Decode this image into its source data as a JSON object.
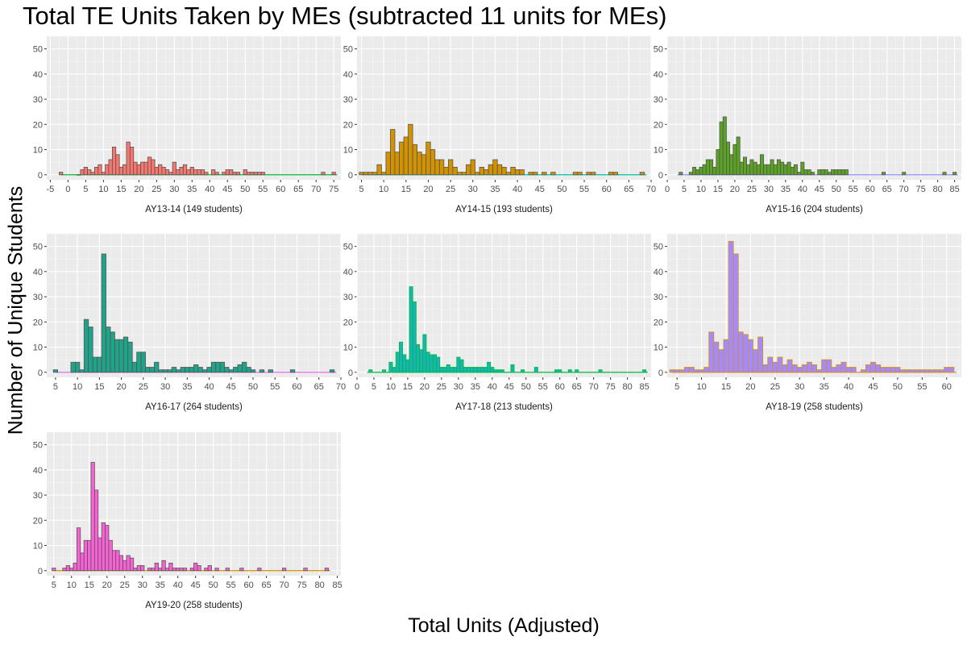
{
  "title": "Total TE Units Taken by MEs (subtracted 11 units for MEs)",
  "ylabel": "Number of Unique Students",
  "xlabel": "Total Units (Adjusted)",
  "chart_data": [
    {
      "type": "bar",
      "panel": "AY13-14 (149 students)",
      "fill": "#F8766D",
      "stroke": "#555555",
      "xlim": [
        -6,
        77
      ],
      "xticks": [
        -5,
        0,
        5,
        10,
        15,
        20,
        25,
        30,
        35,
        40,
        45,
        50,
        55,
        60,
        65,
        70,
        75
      ],
      "ylim": [
        -2,
        55
      ],
      "yticks": [
        0,
        10,
        20,
        30,
        40,
        50
      ],
      "line_color": "#00BA38",
      "line_range": [
        -2,
        76
      ],
      "x": [
        -2,
        3,
        4,
        5,
        6,
        7,
        8,
        9,
        10,
        11,
        12,
        13,
        14,
        15,
        16,
        17,
        18,
        19,
        20,
        21,
        22,
        23,
        24,
        25,
        26,
        27,
        28,
        29,
        30,
        31,
        32,
        33,
        34,
        35,
        36,
        37,
        38,
        39,
        41,
        42,
        44,
        45,
        46,
        47,
        48,
        50,
        51,
        52,
        53,
        54,
        55,
        72,
        75
      ],
      "values": [
        1,
        0,
        2,
        3,
        2,
        1,
        3,
        4,
        1,
        4,
        6,
        11,
        8,
        3,
        4,
        13,
        11,
        5,
        4,
        5,
        5,
        7,
        6,
        3,
        4,
        3,
        2,
        1,
        5,
        2,
        3,
        4,
        2,
        3,
        2,
        2,
        2,
        1,
        2,
        1,
        1,
        2,
        2,
        1,
        1,
        2,
        1,
        1,
        1,
        1,
        1,
        1,
        1
      ]
    },
    {
      "type": "bar",
      "panel": "AY14-15 (193 students)",
      "fill": "#D39200",
      "stroke": "#555555",
      "xlim": [
        4,
        70
      ],
      "xticks": [
        5,
        10,
        15,
        20,
        25,
        30,
        35,
        40,
        45,
        50,
        55,
        60,
        65,
        70
      ],
      "ylim": [
        -2,
        55
      ],
      "yticks": [
        0,
        10,
        20,
        30,
        40,
        50
      ],
      "line_color": "#00C19F",
      "line_range": [
        5,
        69
      ],
      "x": [
        5,
        6,
        7,
        8,
        9,
        10,
        11,
        12,
        13,
        14,
        15,
        16,
        17,
        18,
        19,
        20,
        21,
        22,
        23,
        24,
        25,
        26,
        27,
        28,
        29,
        30,
        31,
        32,
        33,
        34,
        35,
        36,
        37,
        38,
        39,
        40,
        41,
        43,
        44,
        46,
        48,
        53,
        54,
        56,
        57,
        61,
        62,
        68
      ],
      "values": [
        1,
        1,
        1,
        1,
        4,
        1,
        9,
        18,
        9,
        13,
        15,
        20,
        12,
        9,
        8,
        13,
        10,
        6,
        6,
        3,
        6,
        3,
        1,
        1,
        4,
        6,
        1,
        3,
        2,
        4,
        6,
        4,
        3,
        1,
        3,
        2,
        2,
        1,
        1,
        1,
        1,
        1,
        1,
        1,
        1,
        1,
        1,
        1
      ]
    },
    {
      "type": "bar",
      "panel": "AY15-16 (204 students)",
      "fill": "#5BA322",
      "stroke": "#555555",
      "xlim": [
        0,
        87
      ],
      "xticks": [
        0,
        5,
        10,
        15,
        20,
        25,
        30,
        35,
        40,
        45,
        50,
        55,
        60,
        65,
        70,
        75,
        80,
        85
      ],
      "ylim": [
        -2,
        55
      ],
      "yticks": [
        0,
        10,
        20,
        30,
        40,
        50
      ],
      "line_color": "#9590FF",
      "line_range": [
        3,
        86
      ],
      "x": [
        4,
        7,
        8,
        9,
        10,
        11,
        12,
        13,
        14,
        15,
        16,
        17,
        18,
        19,
        20,
        21,
        22,
        23,
        24,
        25,
        26,
        27,
        28,
        29,
        30,
        31,
        32,
        33,
        34,
        35,
        36,
        37,
        38,
        39,
        40,
        41,
        42,
        43,
        45,
        46,
        47,
        48,
        49,
        50,
        51,
        52,
        53,
        64,
        70,
        82,
        85
      ],
      "values": [
        1,
        1,
        3,
        2,
        3,
        4,
        6,
        6,
        3,
        10,
        21,
        23,
        13,
        8,
        12,
        15,
        5,
        7,
        4,
        6,
        5,
        4,
        8,
        4,
        4,
        6,
        4,
        6,
        5,
        4,
        5,
        3,
        4,
        1,
        5,
        2,
        2,
        1,
        2,
        2,
        2,
        1,
        2,
        2,
        2,
        2,
        2,
        1,
        1,
        1,
        1
      ]
    },
    {
      "type": "bar",
      "panel": "AY16-17 (264 students)",
      "fill": "#1FA48A",
      "stroke": "#555555",
      "xlim": [
        3,
        70
      ],
      "xticks": [
        5,
        10,
        15,
        20,
        25,
        30,
        35,
        40,
        45,
        50,
        55,
        60,
        65,
        70
      ],
      "ylim": [
        -2,
        55
      ],
      "yticks": [
        0,
        10,
        20,
        30,
        40,
        50
      ],
      "line_color": "#E76BF3",
      "line_range": [
        5,
        69
      ],
      "x": [
        5,
        9,
        10,
        11,
        12,
        13,
        14,
        15,
        16,
        17,
        18,
        19,
        20,
        21,
        22,
        23,
        24,
        25,
        26,
        27,
        28,
        29,
        30,
        31,
        32,
        33,
        34,
        35,
        36,
        37,
        38,
        39,
        40,
        41,
        42,
        43,
        44,
        45,
        46,
        47,
        48,
        49,
        50,
        52,
        54,
        59,
        68
      ],
      "values": [
        1,
        4,
        4,
        1,
        21,
        18,
        6,
        6,
        47,
        18,
        16,
        13,
        13,
        14,
        12,
        4,
        8,
        8,
        2,
        2,
        4,
        1,
        1,
        1,
        2,
        1,
        2,
        2,
        2,
        3,
        2,
        1,
        2,
        4,
        4,
        4,
        2,
        1,
        2,
        3,
        4,
        2,
        1,
        1,
        1,
        1,
        1
      ]
    },
    {
      "type": "bar",
      "panel": "AY17-18 (213 students)",
      "fill": "#19B4B4",
      "stroke": "#00BA38",
      "xlim": [
        0,
        87
      ],
      "xticks": [
        0,
        5,
        10,
        15,
        20,
        25,
        30,
        35,
        40,
        45,
        50,
        55,
        60,
        65,
        70,
        75,
        80,
        85
      ],
      "ylim": [
        -2,
        55
      ],
      "yticks": [
        0,
        10,
        20,
        30,
        40,
        50
      ],
      "line_color": "#00BA38",
      "line_range": [
        3,
        86
      ],
      "x": [
        4,
        8,
        10,
        11,
        12,
        13,
        14,
        15,
        16,
        17,
        18,
        19,
        20,
        21,
        22,
        23,
        24,
        25,
        26,
        27,
        28,
        29,
        30,
        31,
        32,
        33,
        34,
        35,
        36,
        37,
        38,
        39,
        40,
        41,
        42,
        43,
        46,
        49,
        53,
        59,
        60,
        63,
        65,
        72,
        85
      ],
      "values": [
        1,
        1,
        4,
        2,
        8,
        12,
        7,
        5,
        34,
        28,
        11,
        9,
        15,
        8,
        7,
        7,
        6,
        2,
        2,
        3,
        2,
        2,
        6,
        5,
        2,
        2,
        2,
        2,
        2,
        2,
        2,
        4,
        2,
        1,
        1,
        1,
        3,
        1,
        2,
        1,
        1,
        1,
        1,
        1,
        1
      ]
    },
    {
      "type": "bar",
      "panel": "AY18-19 (258 students)",
      "fill": "#A58AFF",
      "stroke": "#D39200",
      "xlim": [
        3,
        63
      ],
      "xticks": [
        5,
        10,
        15,
        20,
        25,
        30,
        35,
        40,
        45,
        50,
        55,
        60
      ],
      "ylim": [
        -2,
        55
      ],
      "yticks": [
        0,
        10,
        20,
        30,
        40,
        50
      ],
      "line_color": "#F8766D",
      "line_range": [
        4,
        62
      ],
      "x": [
        4,
        5,
        6,
        7,
        8,
        9,
        10,
        11,
        12,
        13,
        14,
        15,
        16,
        17,
        18,
        19,
        20,
        21,
        22,
        23,
        24,
        25,
        26,
        27,
        28,
        29,
        30,
        31,
        32,
        33,
        34,
        35,
        36,
        37,
        38,
        39,
        40,
        41,
        43,
        44,
        45,
        46,
        47,
        48,
        49,
        50,
        51,
        52,
        53,
        54,
        55,
        56,
        57,
        58,
        59,
        60,
        61
      ],
      "values": [
        1,
        1,
        1,
        2,
        2,
        1,
        1,
        2,
        16,
        12,
        9,
        13,
        52,
        47,
        16,
        15,
        13,
        9,
        14,
        3,
        6,
        4,
        6,
        3,
        5,
        3,
        2,
        3,
        4,
        3,
        1,
        5,
        5,
        2,
        3,
        4,
        2,
        2,
        1,
        3,
        4,
        3,
        2,
        2,
        2,
        2,
        1,
        1,
        1,
        1,
        1,
        1,
        1,
        1,
        1,
        2,
        2
      ]
    },
    {
      "type": "bar",
      "panel": "AY19-20 (258 students)",
      "fill": "#FB61D7",
      "stroke": "#555555",
      "xlim": [
        3,
        86
      ],
      "xticks": [
        5,
        10,
        15,
        20,
        25,
        30,
        35,
        40,
        45,
        50,
        55,
        60,
        65,
        70,
        75,
        80,
        85
      ],
      "ylim": [
        -2,
        55
      ],
      "yticks": [
        0,
        10,
        20,
        30,
        40,
        50
      ],
      "line_color": "#D39200",
      "line_range": [
        5,
        83
      ],
      "x": [
        5,
        8,
        9,
        10,
        11,
        12,
        13,
        14,
        15,
        16,
        17,
        18,
        19,
        20,
        21,
        22,
        23,
        24,
        25,
        26,
        27,
        28,
        29,
        30,
        32,
        33,
        34,
        35,
        36,
        37,
        38,
        39,
        40,
        41,
        42,
        44,
        45,
        46,
        48,
        49,
        51,
        54,
        58,
        63,
        70,
        76,
        82
      ],
      "values": [
        1,
        1,
        2,
        1,
        3,
        17,
        7,
        12,
        12,
        43,
        32,
        13,
        19,
        18,
        12,
        8,
        8,
        6,
        4,
        6,
        5,
        1,
        2,
        2,
        1,
        1,
        3,
        1,
        4,
        1,
        3,
        1,
        1,
        1,
        1,
        1,
        3,
        2,
        1,
        2,
        1,
        1,
        1,
        1,
        1,
        1,
        1
      ]
    }
  ]
}
